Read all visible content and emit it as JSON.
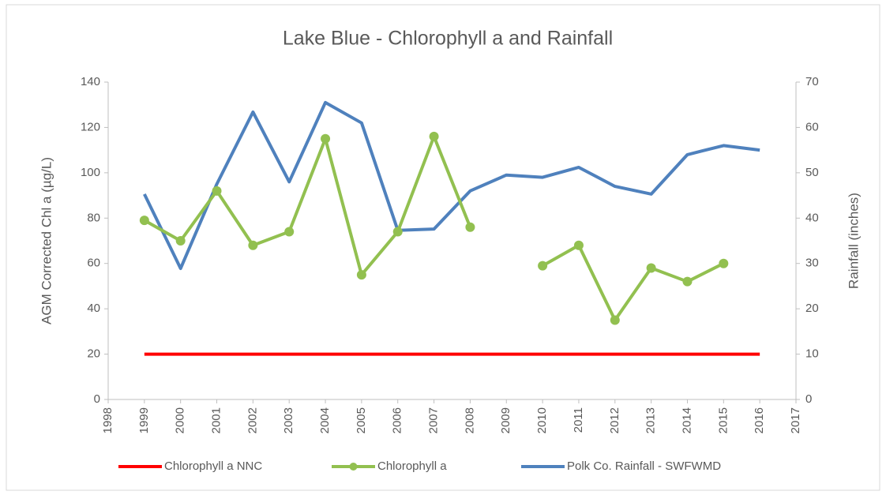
{
  "chart_data": {
    "type": "line",
    "title": "Lake Blue - Chlorophyll a and Rainfall",
    "y_label": "AGM Corrected Chl a (µg/L)",
    "y2_label": "Rainfall (inches)",
    "x": [
      1999,
      2000,
      2001,
      2002,
      2003,
      2004,
      2005,
      2006,
      2007,
      2008,
      2009,
      2010,
      2011,
      2012,
      2013,
      2014,
      2015,
      2016
    ],
    "xlim": [
      1998,
      2017
    ],
    "xticks": [
      1998,
      1999,
      2000,
      2001,
      2002,
      2003,
      2004,
      2005,
      2006,
      2007,
      2008,
      2009,
      2010,
      2011,
      2012,
      2013,
      2014,
      2015,
      2016,
      2017
    ],
    "ylim": [
      0,
      140
    ],
    "yticks": [
      0,
      20,
      40,
      60,
      80,
      100,
      120,
      140
    ],
    "y2lim": [
      0,
      70
    ],
    "y2ticks": [
      0,
      10,
      20,
      30,
      40,
      50,
      60,
      70
    ],
    "grid": false,
    "legend": "bottom",
    "series": [
      {
        "name": "Chlorophyll a NNC",
        "color": "#ff0000",
        "values": [
          20,
          20,
          20,
          20,
          20,
          20,
          20,
          20,
          20,
          20,
          20,
          20,
          20,
          20,
          20,
          20,
          20,
          20
        ]
      },
      {
        "name": "Chlorophyll a",
        "color": "#92c050",
        "markers": true,
        "values": [
          79,
          70,
          92,
          68,
          74,
          115,
          55,
          74,
          116,
          76,
          null,
          59,
          68,
          35,
          58,
          52,
          60,
          null
        ]
      },
      {
        "name": "Polk Co. Rainfall - SWFWMD",
        "color": "#4f81bd",
        "axis": "y2",
        "values": [
          45.3,
          28.9,
          47.5,
          63.4,
          48,
          65.5,
          61,
          37.3,
          37.6,
          46,
          49.5,
          49,
          51.2,
          47,
          45.3,
          54,
          56,
          55
        ]
      }
    ]
  }
}
